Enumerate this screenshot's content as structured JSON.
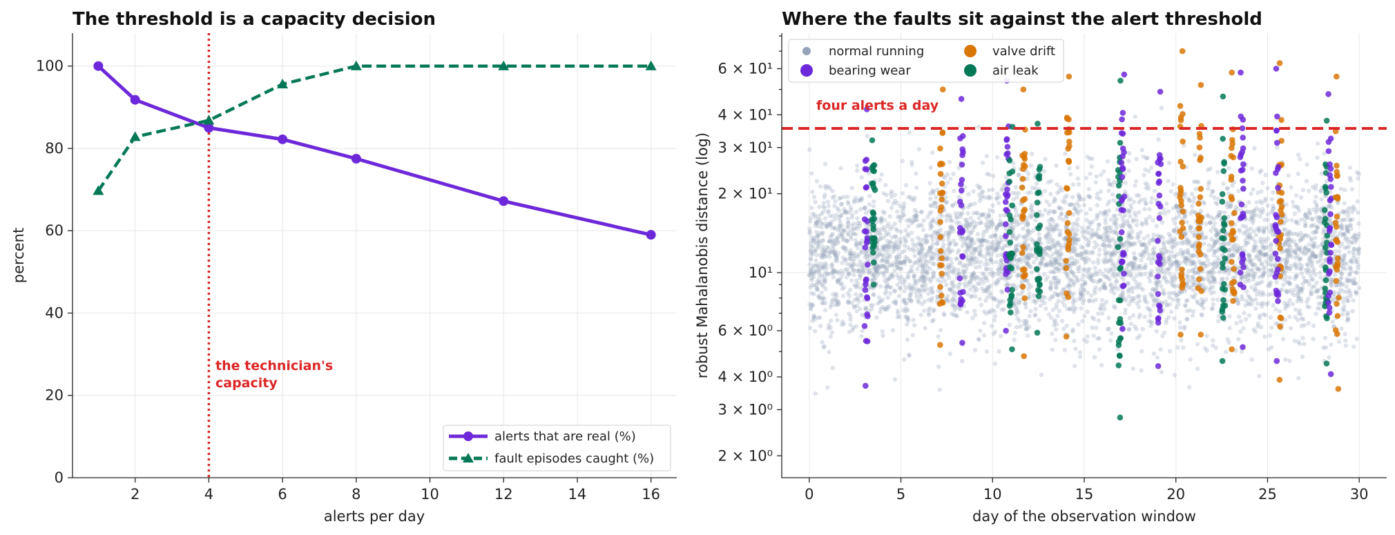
{
  "chart_data": [
    {
      "type": "line",
      "title": "The threshold is a capacity decision",
      "xlabel": "alerts per day",
      "ylabel": "percent",
      "xlim": [
        0.3,
        16.7
      ],
      "ylim": [
        0,
        108
      ],
      "xticks": [
        "2",
        "4",
        "6",
        "8",
        "10",
        "12",
        "14",
        "16"
      ],
      "yticks": [
        "0",
        "20",
        "40",
        "60",
        "80",
        "100"
      ],
      "grid": true,
      "legend_position": "lower-right",
      "x": [
        1,
        2,
        4,
        6,
        8,
        12,
        16
      ],
      "series": [
        {
          "name": "alerts that are real (%)",
          "values": [
            100,
            91.8,
            85.0,
            82.2,
            77.5,
            67.2,
            59.0
          ],
          "color": "#6d28d9",
          "marker": "circle",
          "style": "solid"
        },
        {
          "name": "fault episodes caught (%)",
          "values": [
            69.7,
            82.8,
            86.8,
            95.6,
            100,
            100,
            100
          ],
          "color": "#047857",
          "marker": "triangle",
          "style": "dashed"
        }
      ],
      "reference_line": {
        "axis": "x",
        "value": 4,
        "color": "#dc2626",
        "style": "dotted",
        "label": "the technician's capacity",
        "label_lines": [
          "the technician's",
          "capacity"
        ]
      }
    },
    {
      "type": "scatter",
      "title": "Where the faults sit against the alert threshold",
      "xlabel": "day of the observation window",
      "ylabel": "robust Mahalanobis distance (log)",
      "xlim": [
        -1.5,
        31.5
      ],
      "ylim": [
        1.65,
        82
      ],
      "yscale": "log",
      "xticks": [
        "0",
        "5",
        "10",
        "15",
        "20",
        "25",
        "30"
      ],
      "yticks": [
        {
          "value": 2,
          "label": "2 × 10⁰"
        },
        {
          "value": 3,
          "label": "3 × 10⁰"
        },
        {
          "value": 4,
          "label": "4 × 10⁰"
        },
        {
          "value": 6,
          "label": "6 × 10⁰"
        },
        {
          "value": 10,
          "label": "10¹"
        },
        {
          "value": 20,
          "label": "2 × 10¹"
        },
        {
          "value": 30,
          "label": "3 × 10¹"
        },
        {
          "value": 40,
          "label": "4 × 10¹"
        },
        {
          "value": 60,
          "label": "6 × 10¹"
        }
      ],
      "grid": true,
      "legend_position": "top-left",
      "threshold": {
        "value": 35.5,
        "color": "#dc2626",
        "style": "dashed",
        "label": "four alerts a day"
      },
      "background": {
        "name": "normal running",
        "color": "#94a3b8",
        "days": [
          0,
          30
        ],
        "median": 11.5,
        "spread_log10": 0.15,
        "approx_points": 4500
      },
      "fault_episodes": [
        {
          "name": "bearing wear",
          "color": "#6d28d9",
          "day": 3.1,
          "low": 3.7,
          "high": 42
        },
        {
          "name": "air leak",
          "color": "#047857",
          "day": 3.5,
          "low": 9.0,
          "high": 32
        },
        {
          "name": "valve drift",
          "color": "#d97706",
          "day": 7.2,
          "low": 5.3,
          "high": 50
        },
        {
          "name": "bearing wear",
          "color": "#6d28d9",
          "day": 8.3,
          "low": 5.4,
          "high": 46
        },
        {
          "name": "bearing wear",
          "color": "#6d28d9",
          "day": 10.8,
          "low": 6.0,
          "high": 54
        },
        {
          "name": "air leak",
          "color": "#047857",
          "day": 11.0,
          "low": 5.1,
          "high": 36
        },
        {
          "name": "valve drift",
          "color": "#d97706",
          "day": 11.7,
          "low": 4.8,
          "high": 50
        },
        {
          "name": "air leak",
          "color": "#047857",
          "day": 12.5,
          "low": 5.9,
          "high": 37
        },
        {
          "name": "valve drift",
          "color": "#d97706",
          "day": 14.1,
          "low": 5.7,
          "high": 56
        },
        {
          "name": "air leak",
          "color": "#047857",
          "day": 16.9,
          "low": 2.8,
          "high": 54
        },
        {
          "name": "bearing wear",
          "color": "#6d28d9",
          "day": 17.1,
          "low": 6.1,
          "high": 57
        },
        {
          "name": "bearing wear",
          "color": "#6d28d9",
          "day": 19.1,
          "low": 4.4,
          "high": 49
        },
        {
          "name": "valve drift",
          "color": "#d97706",
          "day": 20.3,
          "low": 5.8,
          "high": 70
        },
        {
          "name": "valve drift",
          "color": "#d97706",
          "day": 21.3,
          "low": 5.8,
          "high": 52
        },
        {
          "name": "air leak",
          "color": "#047857",
          "day": 22.6,
          "low": 4.6,
          "high": 47
        },
        {
          "name": "valve drift",
          "color": "#d97706",
          "day": 23.1,
          "low": 5.1,
          "high": 58
        },
        {
          "name": "bearing wear",
          "color": "#6d28d9",
          "day": 23.6,
          "low": 5.2,
          "high": 58
        },
        {
          "name": "valve drift",
          "color": "#d97706",
          "day": 25.7,
          "low": 3.9,
          "high": 63
        },
        {
          "name": "bearing wear",
          "color": "#6d28d9",
          "day": 25.5,
          "low": 4.6,
          "high": 60
        },
        {
          "name": "air leak",
          "color": "#047857",
          "day": 28.2,
          "low": 4.5,
          "high": 38
        },
        {
          "name": "bearing wear",
          "color": "#6d28d9",
          "day": 28.4,
          "low": 4.1,
          "high": 48
        },
        {
          "name": "valve drift",
          "color": "#d97706",
          "day": 28.8,
          "low": 3.6,
          "high": 56
        }
      ],
      "legend": [
        {
          "name": "normal running",
          "color": "#94a3b8"
        },
        {
          "name": "bearing wear",
          "color": "#6d28d9"
        },
        {
          "name": "valve drift",
          "color": "#d97706"
        },
        {
          "name": "air leak",
          "color": "#047857"
        }
      ]
    }
  ]
}
